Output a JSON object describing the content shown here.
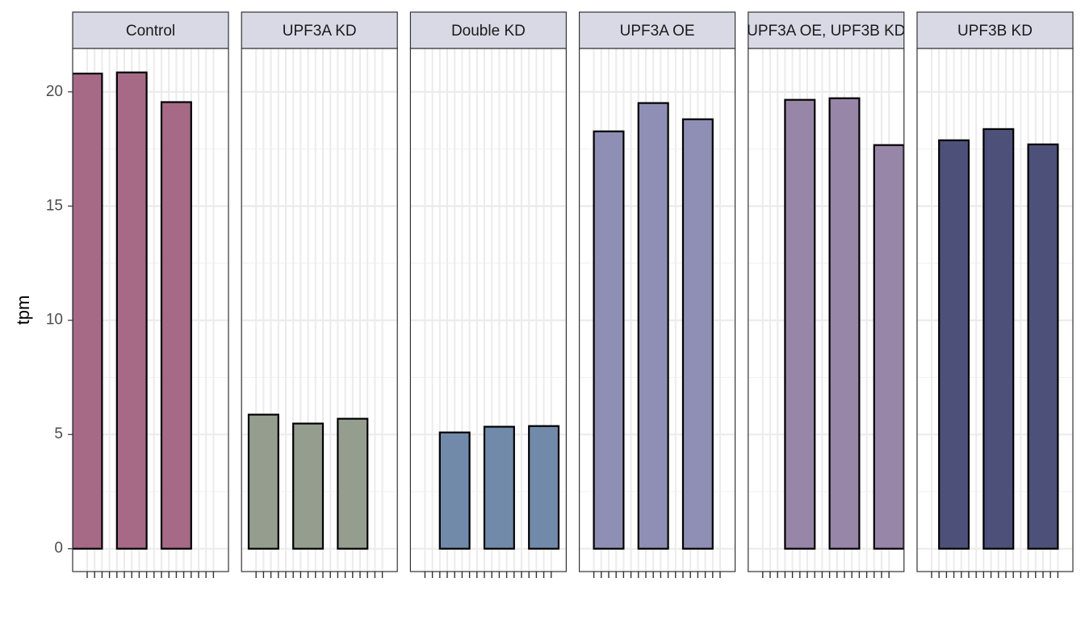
{
  "chart_data": {
    "type": "bar",
    "ylabel": "tpm",
    "ylim": [
      -1,
      21.9
    ],
    "yticks": [
      0,
      5,
      10,
      15,
      20
    ],
    "grid": true,
    "categories": [
      null,
      null,
      null,
      null,
      null,
      null,
      null,
      null,
      null,
      null,
      null,
      null,
      null,
      null,
      null,
      null,
      null,
      null
    ],
    "facets": [
      {
        "title": "Control",
        "color": "#a66a87",
        "values": [
          20.8,
          null,
          null,
          null,
          null,
          null,
          20.85,
          null,
          null,
          null,
          null,
          null,
          19.55,
          null,
          null,
          null,
          null,
          null
        ]
      },
      {
        "title": "UPF3A KD",
        "color": "#959e8e",
        "values": [
          null,
          5.87,
          null,
          null,
          null,
          null,
          null,
          5.48,
          null,
          null,
          null,
          null,
          null,
          5.69,
          null,
          null,
          null,
          null
        ]
      },
      {
        "title": "Double KD",
        "color": "#718aaa",
        "values": [
          null,
          null,
          null,
          null,
          5.09,
          null,
          null,
          null,
          null,
          null,
          5.34,
          null,
          null,
          null,
          null,
          null,
          5.37,
          null
        ]
      },
      {
        "title": "UPF3A OE",
        "color": "#8f8fb5",
        "values": [
          null,
          null,
          18.27,
          null,
          null,
          null,
          null,
          null,
          19.51,
          null,
          null,
          null,
          null,
          null,
          18.8,
          null,
          null,
          null
        ]
      },
      {
        "title": "UPF3A OE, UPF3B KD",
        "color": "#9886a8",
        "values": [
          null,
          null,
          null,
          null,
          null,
          19.65,
          null,
          null,
          null,
          null,
          null,
          19.72,
          null,
          null,
          null,
          null,
          null,
          17.67
        ]
      },
      {
        "title": "UPF3B KD",
        "color": "#4d5079",
        "values": [
          null,
          null,
          null,
          17.88,
          null,
          null,
          null,
          null,
          null,
          18.37,
          null,
          null,
          null,
          null,
          null,
          17.7,
          null,
          null
        ]
      }
    ]
  }
}
